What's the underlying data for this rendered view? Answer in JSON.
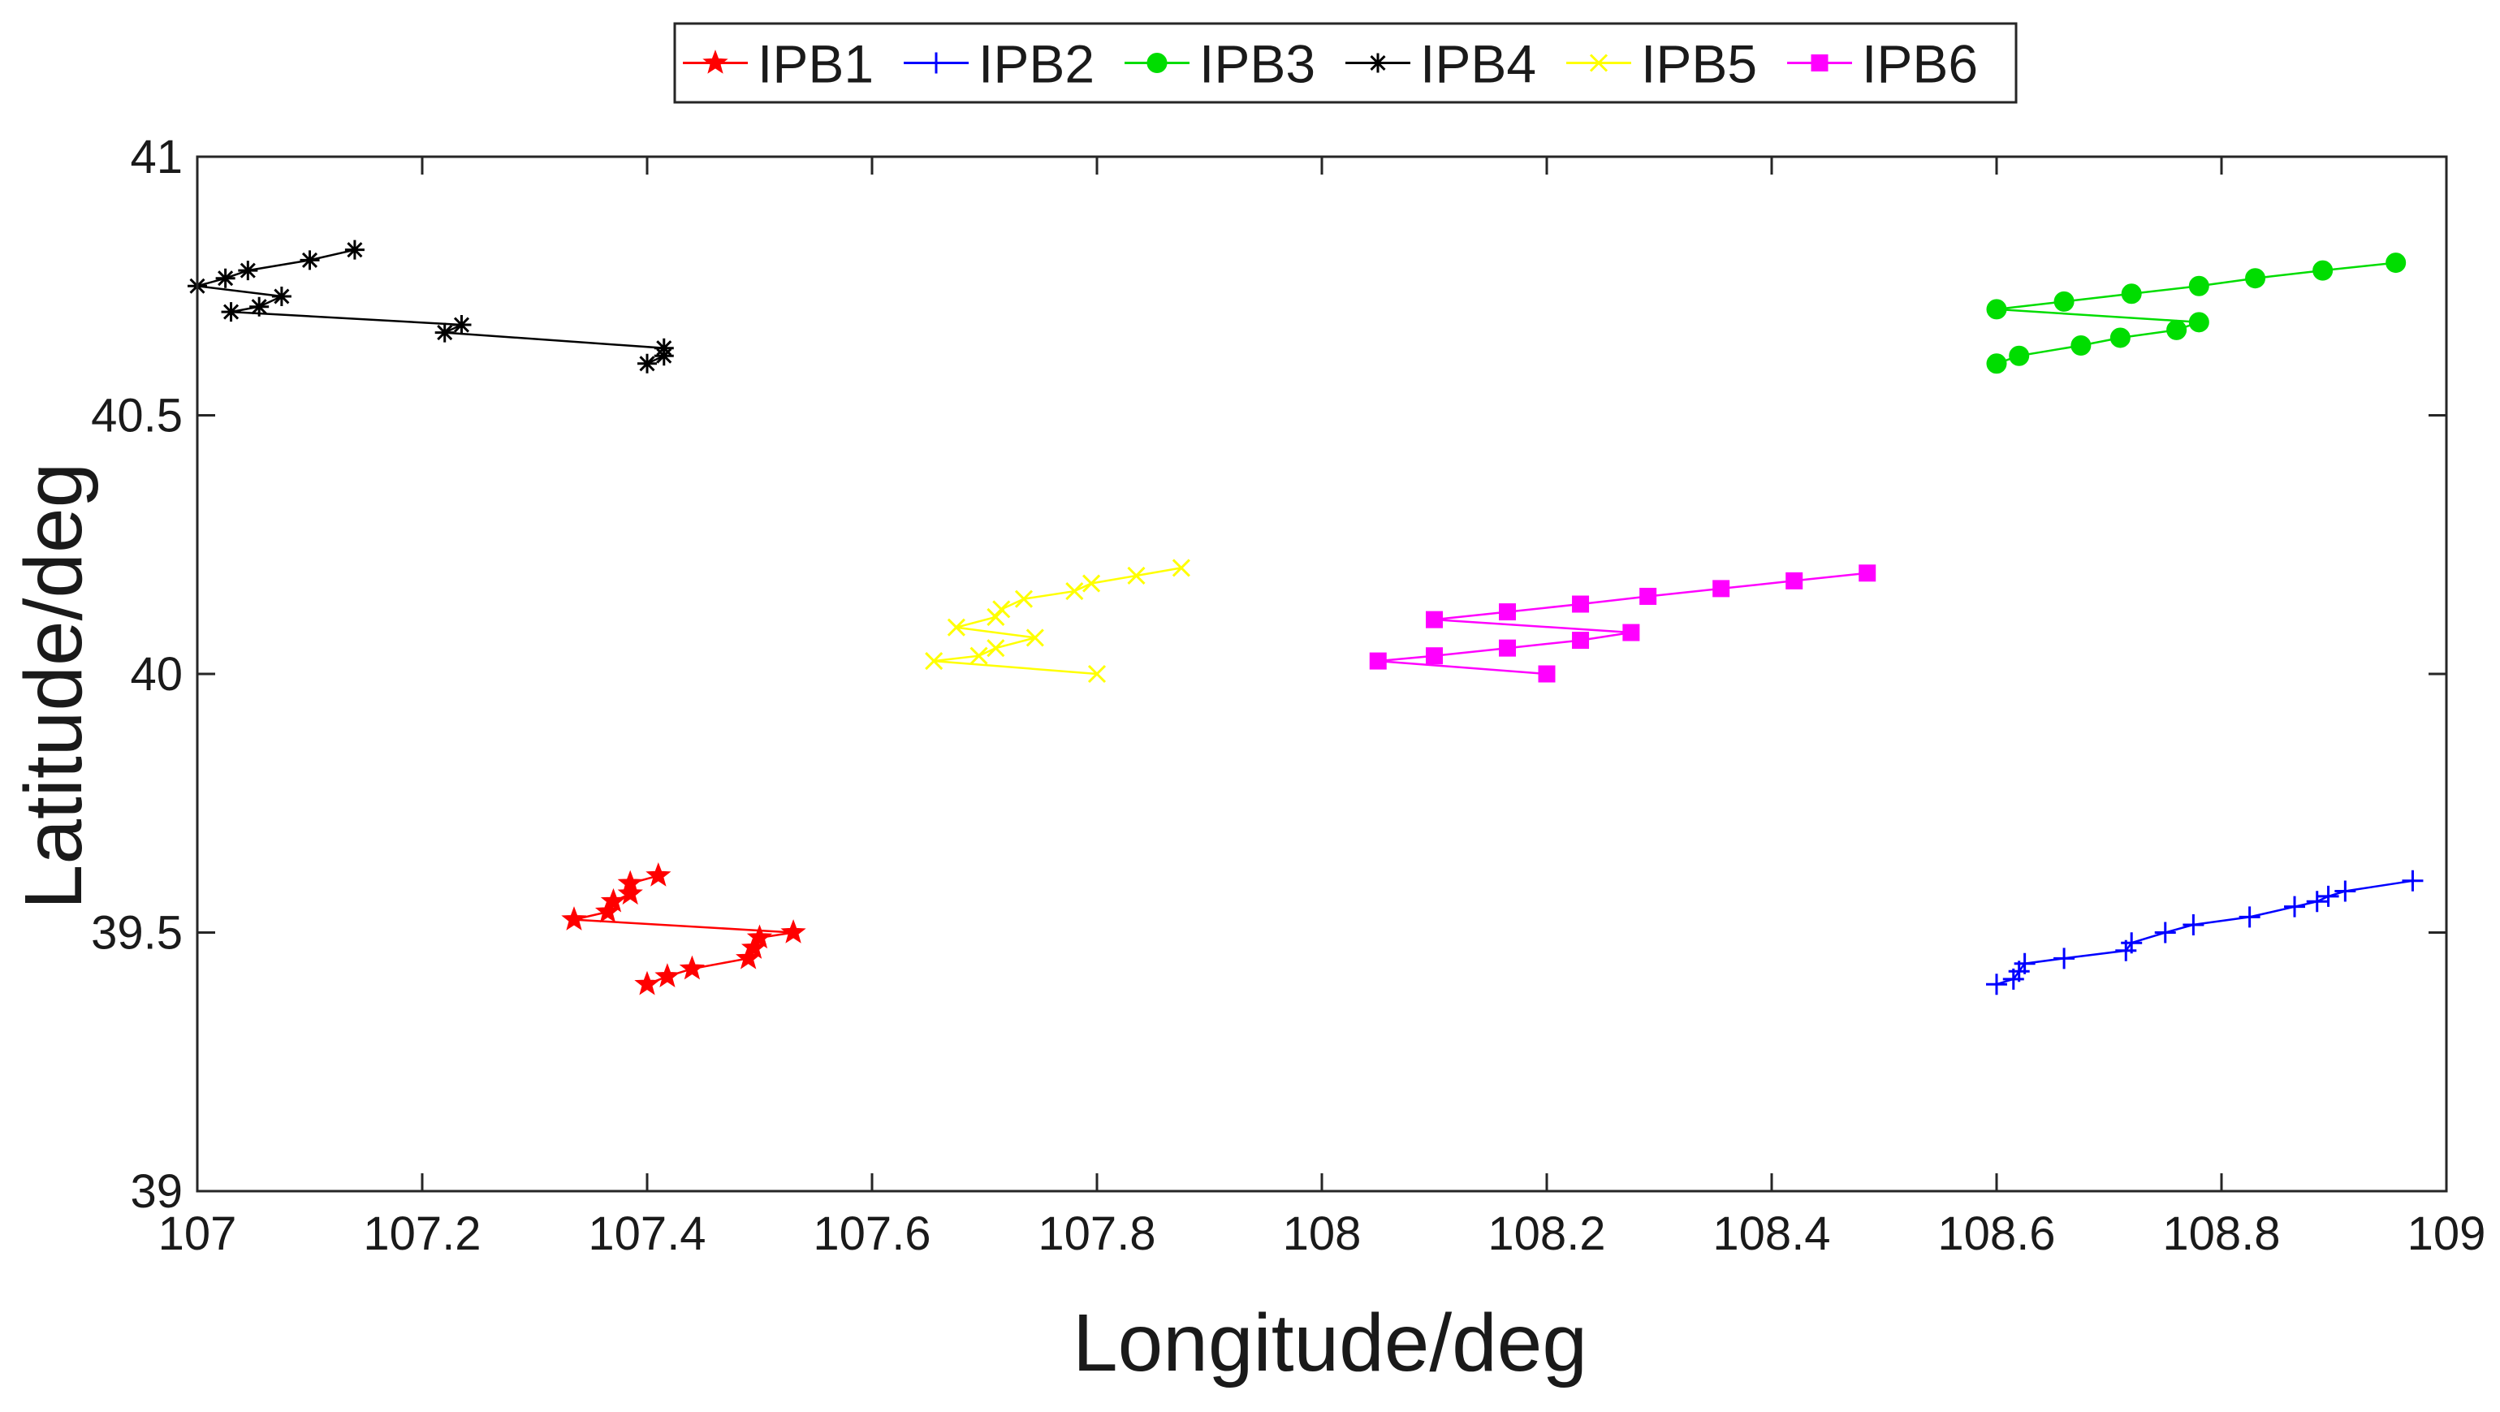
{
  "chart_data": {
    "type": "line",
    "title": "",
    "xlabel": "Longitude/deg",
    "ylabel": "Latitude/deg",
    "xlim": [
      107,
      109
    ],
    "ylim": [
      39,
      41
    ],
    "xticks": [
      107,
      107.2,
      107.4,
      107.6,
      107.8,
      108,
      108.2,
      108.4,
      108.6,
      108.8,
      109
    ],
    "yticks": [
      39,
      39.5,
      40,
      40.5,
      41
    ],
    "xtick_labels": [
      "107",
      "107.2",
      "107.4",
      "107.6",
      "107.8",
      "108",
      "108.2",
      "108.4",
      "108.6",
      "108.8",
      "109"
    ],
    "ytick_labels": [
      "39",
      "39.5",
      "40",
      "40.5",
      "41"
    ],
    "grid": false,
    "legend_position": "top-center",
    "series": [
      {
        "name": "IPB1",
        "color": "#ff0000",
        "marker": "star",
        "x": [
          107.4,
          107.418,
          107.44,
          107.49,
          107.495,
          107.5,
          107.53,
          107.335,
          107.365,
          107.37,
          107.385,
          107.385,
          107.41
        ],
        "y": [
          39.4,
          39.415,
          39.43,
          39.45,
          39.47,
          39.49,
          39.5,
          39.525,
          39.54,
          39.56,
          39.575,
          39.595,
          39.61
        ]
      },
      {
        "name": "IPB2",
        "color": "#0000ff",
        "marker": "plus",
        "x": [
          108.6,
          108.615,
          108.62,
          108.625,
          108.66,
          108.715,
          108.72,
          108.75,
          108.775,
          108.825,
          108.865,
          108.885,
          108.895,
          108.91,
          108.97
        ],
        "y": [
          39.4,
          39.41,
          39.425,
          39.44,
          39.45,
          39.465,
          39.48,
          39.5,
          39.515,
          39.53,
          39.55,
          39.56,
          39.57,
          39.58,
          39.6
        ]
      },
      {
        "name": "IPB3",
        "color": "#00dd00",
        "marker": "circle",
        "x": [
          108.6,
          108.62,
          108.675,
          108.71,
          108.76,
          108.78,
          108.6,
          108.66,
          108.72,
          108.78,
          108.83,
          108.89,
          108.955
        ],
        "y": [
          40.6,
          40.615,
          40.635,
          40.65,
          40.665,
          40.68,
          40.705,
          40.72,
          40.735,
          40.75,
          40.765,
          40.78,
          40.795
        ]
      },
      {
        "name": "IPB4",
        "color": "#000000",
        "marker": "asterisk",
        "x": [
          107.4,
          107.415,
          107.415,
          107.22,
          107.235,
          107.03,
          107.055,
          107.075,
          107.0,
          107.025,
          107.045,
          107.1,
          107.14
        ],
        "y": [
          40.6,
          40.615,
          40.63,
          40.66,
          40.675,
          40.7,
          40.71,
          40.73,
          40.75,
          40.765,
          40.78,
          40.8,
          40.82
        ]
      },
      {
        "name": "IPB5",
        "color": "#ffff00",
        "marker": "x",
        "x": [
          107.8,
          107.655,
          107.695,
          107.71,
          107.745,
          107.675,
          107.71,
          107.715,
          107.735,
          107.78,
          107.795,
          107.835,
          107.875
        ],
        "y": [
          40.0,
          40.025,
          40.035,
          40.05,
          40.07,
          40.09,
          40.11,
          40.125,
          40.145,
          40.16,
          40.175,
          40.19,
          40.205
        ]
      },
      {
        "name": "IPB6",
        "color": "#ff00ff",
        "marker": "square",
        "x": [
          108.2,
          108.05,
          108.1,
          108.165,
          108.23,
          108.275,
          108.1,
          108.165,
          108.23,
          108.29,
          108.355,
          108.42,
          108.485
        ],
        "y": [
          40.0,
          40.025,
          40.035,
          40.05,
          40.065,
          40.08,
          40.105,
          40.12,
          40.135,
          40.15,
          40.165,
          40.18,
          40.195
        ]
      }
    ]
  }
}
